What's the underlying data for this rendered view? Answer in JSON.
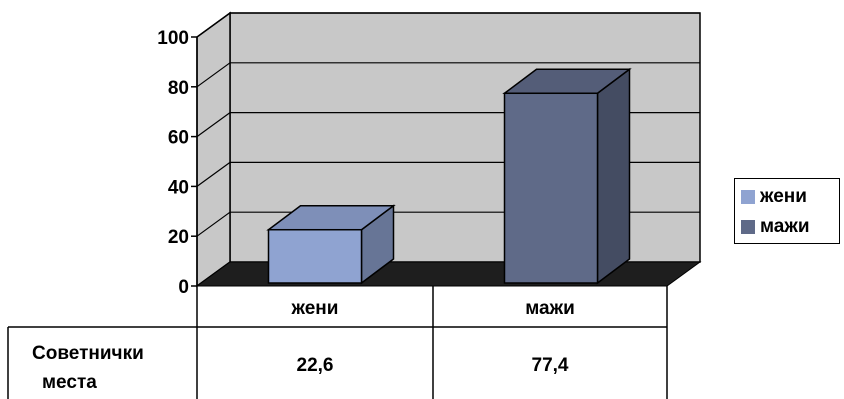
{
  "chart_data": {
    "type": "bar",
    "categories": [
      "жени",
      "мажи"
    ],
    "series": [
      {
        "name": "Советнички места",
        "values": [
          22.6,
          77.4
        ]
      }
    ],
    "ylim": [
      0,
      100
    ],
    "yticks": [
      "0",
      "20",
      "40",
      "60",
      "80",
      "100"
    ],
    "grid": true,
    "legend_position": "right",
    "legend": [
      "жени",
      "мажи"
    ],
    "table": {
      "row_label_line1": "Советнички",
      "row_label_line2": "места",
      "values": [
        "22,6",
        "77,4"
      ]
    },
    "colors": {
      "жени": "#8fa3d1",
      "мажи": "#5f6a88",
      "wall": "#c8c8c8",
      "floor": "#1e1e1e"
    }
  }
}
